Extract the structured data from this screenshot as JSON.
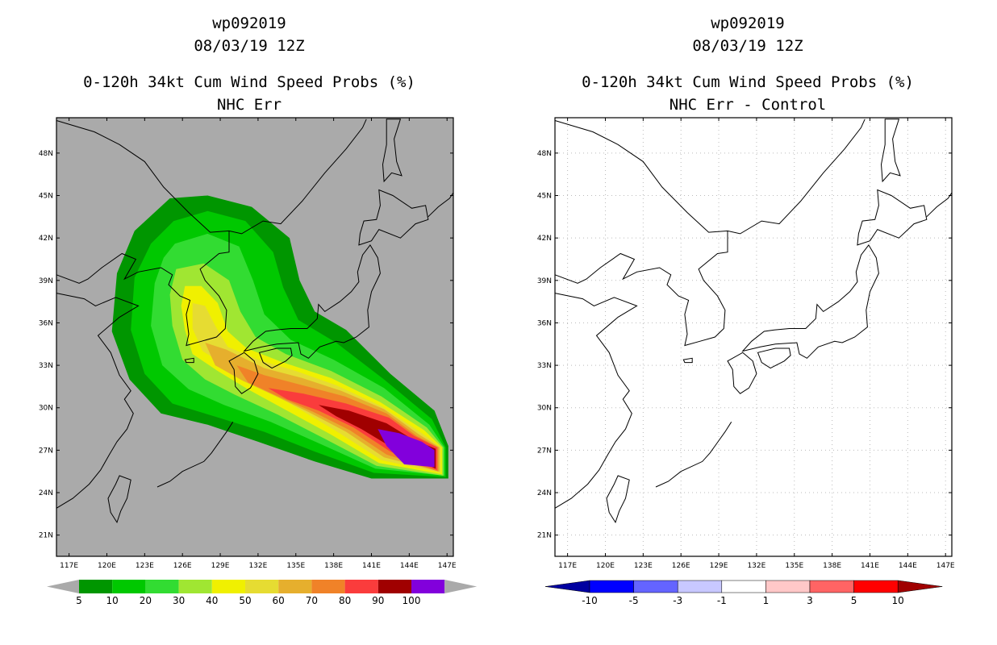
{
  "panels": [
    {
      "storm_id": "wp092019",
      "datetime": "08/03/19 12Z",
      "product": "0-120h 34kt Cum Wind Speed Probs (%)",
      "subtitle": "NHC Err",
      "map_background": "#aaaaaa"
    },
    {
      "storm_id": "wp092019",
      "datetime": "08/03/19 12Z",
      "product": "0-120h 34kt Cum Wind Speed Probs (%)",
      "subtitle": "NHC Err - Control",
      "map_background": "#ffffff"
    }
  ],
  "axes": {
    "lon_labels": [
      "117E",
      "120E",
      "123E",
      "126E",
      "129E",
      "132E",
      "135E",
      "138E",
      "141E",
      "144E",
      "147E"
    ],
    "lat_labels": [
      "21N",
      "24N",
      "27N",
      "30N",
      "33N",
      "36N",
      "39N",
      "42N",
      "45N",
      "48N"
    ],
    "lon_range": [
      116,
      147.5
    ],
    "lat_range": [
      19.5,
      50.5
    ]
  },
  "colorbar_left": {
    "labels": [
      "5",
      "10",
      "20",
      "30",
      "40",
      "50",
      "60",
      "70",
      "80",
      "90",
      "100"
    ],
    "colors": [
      "#009600",
      "#00c800",
      "#32dc32",
      "#a0e632",
      "#f0f000",
      "#e6dc32",
      "#e6af2d",
      "#f08228",
      "#fa3c3c",
      "#a00000",
      "#8200dc"
    ],
    "end_colors": [
      "#aaaaaa",
      "#aaaaaa"
    ]
  },
  "colorbar_right": {
    "labels": [
      "-10",
      "-5",
      "-3",
      "-1",
      "1",
      "3",
      "5",
      "10"
    ],
    "colors": [
      "#0000ff",
      "#6464ff",
      "#c8c8ff",
      "#ffffff",
      "#ffc8c8",
      "#ff6464",
      "#ff0000"
    ],
    "end_colors": [
      "#0000a0",
      "#a00000"
    ]
  }
}
